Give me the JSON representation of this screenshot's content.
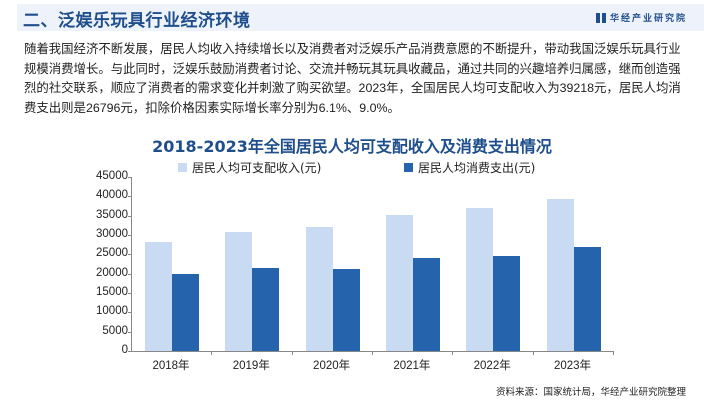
{
  "header": {
    "title": "二、泛娱乐玩具行业经济环境",
    "brand": "华经产业研究院"
  },
  "body_text": "随着我国经济不断发展，居民人均收入持续增长以及消费者对泛娱乐产品消费意愿的不断提升，带动我国泛娱乐玩具行业规模消费增长。与此同时，泛娱乐鼓励消费者讨论、交流并畅玩其玩具收藏品，通过共同的兴趣培养归属感，继而创造强烈的社交联系，顺应了消费者的需求变化并刺激了购买欲望。2023年，全国居民人均可支配收入为39218元，居民人均消费支出则是26796元，扣除价格因素实际增长率分别为6.1%、9.0%。",
  "source": "资料来源：国家统计局，华经产业研究院整理",
  "colors": {
    "income": "#c9dbf2",
    "consumption": "#2563ad",
    "title": "#1f4e8c"
  },
  "chart_data": {
    "type": "bar",
    "title": "2018-2023年全国居民人均可支配收入及消费支出情况",
    "categories": [
      "2018年",
      "2019年",
      "2020年",
      "2021年",
      "2022年",
      "2023年"
    ],
    "series": [
      {
        "name": "居民人均可支配收入(元)",
        "values": [
          28228,
          30733,
          32189,
          35128,
          36883,
          39218
        ]
      },
      {
        "name": "居民人均消费支出(元)",
        "values": [
          19853,
          21559,
          21210,
          24100,
          24538,
          26796
        ]
      }
    ],
    "xlabel": "",
    "ylabel": "",
    "ylim": [
      0,
      45000
    ],
    "yticks": [
      0,
      5000,
      10000,
      15000,
      20000,
      25000,
      30000,
      35000,
      40000,
      45000
    ],
    "legend_position": "top",
    "grid": false
  }
}
